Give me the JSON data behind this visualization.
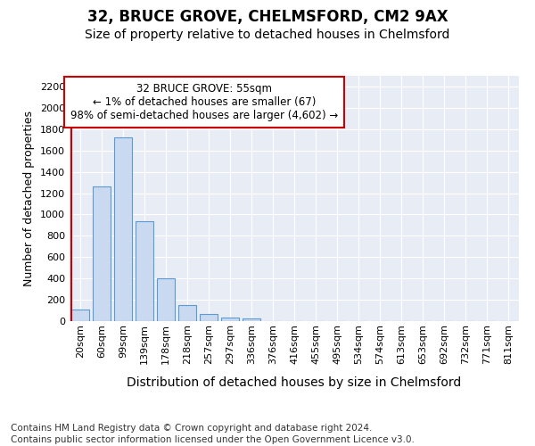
{
  "title": "32, BRUCE GROVE, CHELMSFORD, CM2 9AX",
  "subtitle": "Size of property relative to detached houses in Chelmsford",
  "xlabel": "Distribution of detached houses by size in Chelmsford",
  "ylabel": "Number of detached properties",
  "bar_values": [
    110,
    1260,
    1720,
    935,
    405,
    150,
    65,
    35,
    25,
    0,
    0,
    0,
    0,
    0,
    0,
    0,
    0,
    0,
    0,
    0,
    0
  ],
  "bar_labels": [
    "20sqm",
    "60sqm",
    "99sqm",
    "139sqm",
    "178sqm",
    "218sqm",
    "257sqm",
    "297sqm",
    "336sqm",
    "376sqm",
    "416sqm",
    "455sqm",
    "495sqm",
    "534sqm",
    "574sqm",
    "613sqm",
    "653sqm",
    "692sqm",
    "732sqm",
    "771sqm",
    "811sqm"
  ],
  "bar_color": "#c9d9ef",
  "bar_edge_color": "#5b9bd5",
  "ylim": [
    0,
    2300
  ],
  "yticks": [
    0,
    200,
    400,
    600,
    800,
    1000,
    1200,
    1400,
    1600,
    1800,
    2000,
    2200
  ],
  "vline_color": "#cc0000",
  "annotation_text": "32 BRUCE GROVE: 55sqm\n← 1% of detached houses are smaller (67)\n98% of semi-detached houses are larger (4,602) →",
  "annotation_box_color": "#cc0000",
  "plot_bg": "#e8edf5",
  "footer1": "Contains HM Land Registry data © Crown copyright and database right 2024.",
  "footer2": "Contains public sector information licensed under the Open Government Licence v3.0.",
  "title_fontsize": 12,
  "subtitle_fontsize": 10,
  "xlabel_fontsize": 10,
  "ylabel_fontsize": 9,
  "tick_fontsize": 8,
  "annotation_fontsize": 8.5,
  "footer_fontsize": 7.5
}
